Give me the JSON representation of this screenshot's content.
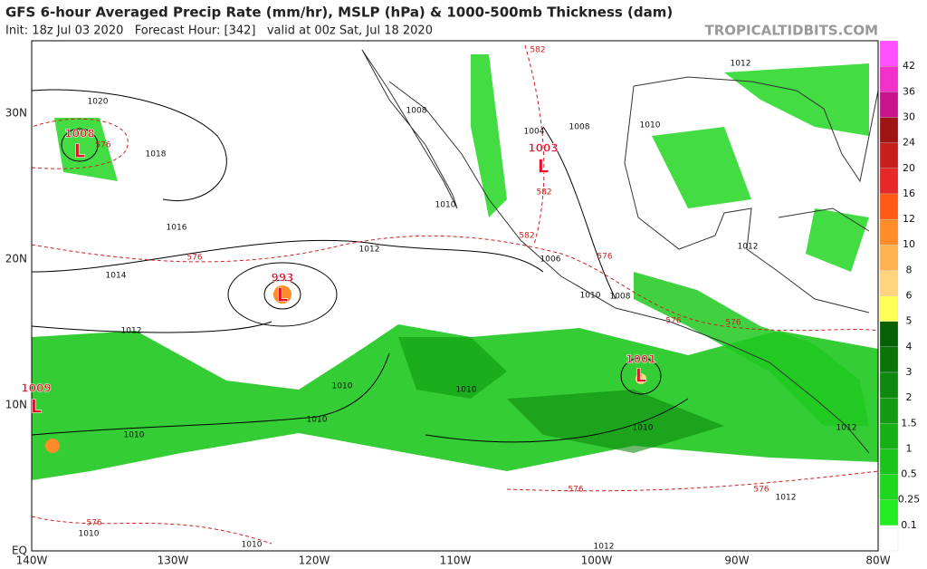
{
  "header": {
    "title": "GFS 6-hour Averaged Precip Rate (mm/hr), MSLP (hPa) & 1000-500mb Thickness (dam)",
    "subtitle": "Init: 18z Jul 03 2020   Forecast Hour: [342]   valid at 00z Sat, Jul 18 2020",
    "source": "TROPICALTIDBITS.COM"
  },
  "map": {
    "lon_labels": [
      "140W",
      "130W",
      "120W",
      "110W",
      "100W",
      "90W",
      "80W"
    ],
    "lat_labels": [
      "EQ",
      "10N",
      "20N",
      "30N"
    ],
    "lows": [
      {
        "pressure": "1008",
        "symbol": "L"
      },
      {
        "pressure": "993",
        "symbol": "L"
      },
      {
        "pressure": "1003",
        "symbol": "L"
      },
      {
        "pressure": "1001",
        "symbol": "L"
      },
      {
        "pressure": "1009",
        "symbol": "L"
      }
    ],
    "isobar_labels": [
      "1020",
      "1018",
      "1016",
      "1014",
      "1012",
      "1012",
      "1012",
      "1010",
      "1010",
      "1010",
      "1008",
      "1004",
      "1008",
      "1010",
      "1010",
      "1006",
      "1008",
      "1010",
      "1012",
      "1010",
      "1012",
      "1010",
      "1012",
      "1012",
      "1010",
      "1010"
    ],
    "thickness_labels": [
      "576",
      "582",
      "582",
      "582",
      "576",
      "576",
      "576",
      "576",
      "576",
      "576",
      "576"
    ]
  },
  "colorbar": {
    "levels": [
      0.1,
      0.25,
      0.5,
      1,
      1.5,
      2,
      3,
      4,
      5,
      6,
      8,
      10,
      12,
      16,
      20,
      24,
      30,
      36,
      42
    ],
    "colors": [
      "#ffffff",
      "#22ee22",
      "#1ed81e",
      "#1bc41b",
      "#17b017",
      "#139c13",
      "#0f880f",
      "#0a740a",
      "#066006",
      "#ffff55",
      "#ffd47f",
      "#ffb450",
      "#ff8c28",
      "#ff5a14",
      "#e62828",
      "#c81e1e",
      "#a01414",
      "#c8148c",
      "#f030c8",
      "#ff50ff"
    ]
  }
}
